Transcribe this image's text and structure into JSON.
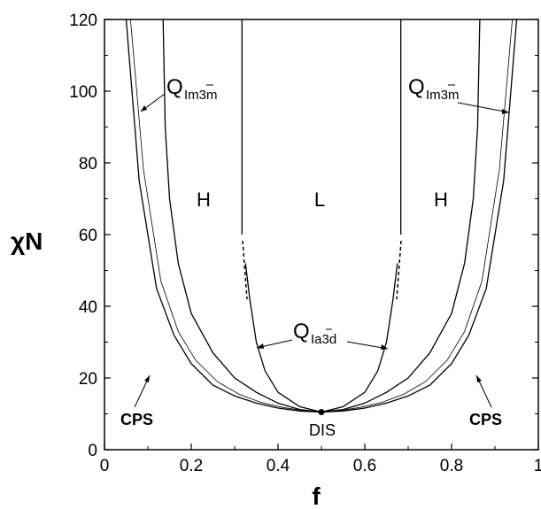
{
  "chart_data": {
    "type": "line",
    "title": "",
    "xlabel": "f",
    "ylabel": "χN",
    "xlim": [
      0,
      1
    ],
    "ylim": [
      0,
      120
    ],
    "x_ticks": [
      "0",
      "0.2",
      "0.4",
      "0.6",
      "0.8",
      "1"
    ],
    "y_ticks": [
      "0",
      "20",
      "40",
      "60",
      "80",
      "100",
      "120"
    ],
    "grid": false,
    "series": [
      {
        "key": "odt",
        "x": [
          0.05,
          0.08,
          0.12,
          0.16,
          0.2,
          0.25,
          0.3,
          0.35,
          0.4,
          0.45,
          0.5,
          0.55,
          0.6,
          0.65,
          0.7,
          0.75,
          0.8,
          0.84,
          0.88,
          0.92,
          0.95
        ],
        "y": [
          120,
          75,
          45,
          32,
          24,
          18,
          15,
          13,
          11.6,
          10.8,
          10.5,
          10.8,
          11.6,
          13,
          15,
          18,
          24,
          32,
          45,
          75,
          120
        ]
      },
      {
        "key": "cps_inner",
        "x": [
          0.06,
          0.09,
          0.13,
          0.17,
          0.21,
          0.26,
          0.31,
          0.36,
          0.41,
          0.46,
          0.5,
          0.54,
          0.59,
          0.64,
          0.69,
          0.74,
          0.79,
          0.83,
          0.87,
          0.91,
          0.94
        ],
        "y": [
          120,
          78,
          47,
          33,
          25,
          19,
          15.5,
          13.2,
          11.8,
          10.9,
          10.5,
          10.9,
          11.8,
          13.2,
          15.5,
          19,
          25,
          33,
          47,
          78,
          120
        ]
      },
      {
        "key": "c_h_left",
        "x": [
          0.135,
          0.14,
          0.15,
          0.17,
          0.2,
          0.25,
          0.3,
          0.35,
          0.4,
          0.45,
          0.5
        ],
        "y": [
          120,
          90,
          70,
          52,
          38,
          27,
          20,
          16,
          13,
          11.2,
          10.5
        ]
      },
      {
        "key": "c_h_right",
        "x": [
          0.5,
          0.55,
          0.6,
          0.65,
          0.7,
          0.75,
          0.8,
          0.83,
          0.85,
          0.86,
          0.865
        ],
        "y": [
          10.5,
          11.2,
          13,
          16,
          20,
          27,
          38,
          52,
          70,
          90,
          120
        ]
      },
      {
        "key": "h_l_left_low",
        "x": [
          0.5,
          0.45,
          0.4,
          0.37,
          0.35,
          0.335,
          0.325
        ],
        "y": [
          10.5,
          12,
          16,
          22,
          30,
          42,
          52
        ]
      },
      {
        "key": "h_l_right_low",
        "x": [
          0.5,
          0.55,
          0.6,
          0.63,
          0.65,
          0.665,
          0.675
        ],
        "y": [
          10.5,
          12,
          16,
          22,
          30,
          42,
          52
        ]
      },
      {
        "key": "h_l_left_high",
        "x": [
          0.317,
          0.317
        ],
        "y": [
          60,
          120
        ]
      },
      {
        "key": "h_l_right_high",
        "x": [
          0.683,
          0.683
        ],
        "y": [
          60,
          120
        ]
      }
    ],
    "regions": [
      "H",
      "L",
      "H"
    ],
    "annotations": {
      "q_im3m_left": "Q",
      "q_im3m_left_sub": "Im3m",
      "q_im3m_right": "Q",
      "q_im3m_right_sub": "Im3m",
      "q_ia3d": "Q",
      "q_ia3d_sub": "Ia3d",
      "cps_left": "CPS",
      "cps_right": "CPS",
      "dis": "DIS"
    },
    "critical_point": {
      "x": 0.5,
      "y": 10.5
    }
  }
}
